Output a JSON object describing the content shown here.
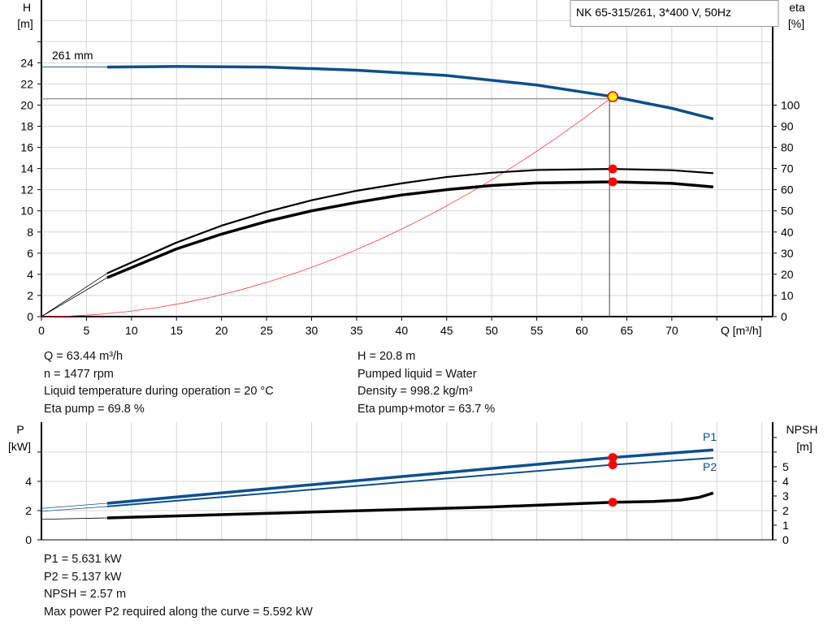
{
  "colors": {
    "head": "#0d4f8b",
    "eta": "#000000",
    "system": "#ff3b3b",
    "marker": "#ff0000",
    "op_fill": "#ffff00",
    "grid": "#d6d6d6"
  },
  "chart_data": [
    {
      "type": "line",
      "title": "NK 65-315/261, 3*400 V, 50Hz",
      "xlabel": "Q [m³/h]",
      "ylabel_left": [
        "H",
        "[m]"
      ],
      "ylabel_right": [
        "eta",
        "[%]"
      ],
      "xlim": [
        0,
        81.2
      ],
      "ylim_left": [
        0,
        29.9
      ],
      "ylim_right": [
        0,
        149.5
      ],
      "grid": true,
      "x_ticks": [
        0,
        5,
        10,
        15,
        20,
        25,
        30,
        35,
        40,
        45,
        50,
        55,
        60,
        65,
        70
      ],
      "y_ticks_left": [
        0,
        2,
        4,
        6,
        8,
        10,
        12,
        14,
        16,
        18,
        20,
        22,
        24
      ],
      "y_ticks_right": [
        0,
        10,
        20,
        30,
        40,
        50,
        60,
        70,
        80,
        90,
        100
      ],
      "curve_label": "261 mm",
      "operating_point": {
        "Q": 63.44,
        "H": 20.8
      },
      "series": [
        {
          "axis": "left",
          "color": "#0d4f8b",
          "width": 3.5,
          "x": [
            7.3,
            15,
            25,
            35,
            45,
            55,
            63.44,
            70,
            74.6
          ],
          "y": [
            23.6,
            23.65,
            23.6,
            23.3,
            22.8,
            21.9,
            20.8,
            19.7,
            18.7
          ],
          "ext": [
            [
              0,
              23.6
            ],
            [
              7.3,
              23.6
            ]
          ]
        },
        {
          "axis": "right",
          "color": "#000000",
          "width": 2.2,
          "x": [
            7.3,
            15,
            20,
            25,
            30,
            35,
            40,
            45,
            50,
            55,
            63.44,
            70,
            74.6
          ],
          "y": [
            20.5,
            35,
            43,
            49.5,
            55,
            59.5,
            63,
            66,
            68,
            69.3,
            69.8,
            69.2,
            67.8
          ],
          "ext": [
            [
              0,
              0
            ],
            [
              7.3,
              20.5
            ]
          ]
        },
        {
          "axis": "right",
          "color": "#000000",
          "width": 3.5,
          "x": [
            7.3,
            15,
            20,
            25,
            30,
            35,
            40,
            45,
            50,
            55,
            63.44,
            70,
            74.6
          ],
          "y": [
            18.4,
            32,
            39,
            45,
            50,
            54,
            57.5,
            60,
            62,
            63.2,
            63.7,
            63,
            61.3
          ],
          "ext": [
            [
              0,
              0
            ],
            [
              7.3,
              18.4
            ]
          ]
        }
      ],
      "markers": [
        {
          "axis": "right",
          "x": 63.44,
          "y": 69.8
        },
        {
          "axis": "right",
          "x": 63.44,
          "y": 63.7
        }
      ]
    },
    {
      "type": "line",
      "xlim": [
        0,
        81.2
      ],
      "ylim": [
        0,
        8.05
      ],
      "ylabel_left": [
        "P",
        "[kW]"
      ],
      "ylabel_right": [
        "NPSH",
        "[m]"
      ],
      "y_ticks_left": [
        0,
        2,
        4
      ],
      "y_ticks_right": [
        0,
        1,
        2,
        3,
        4,
        5
      ],
      "grid": true,
      "series": [
        {
          "name": "P1",
          "color": "#0d4f8b",
          "width": 3.5,
          "x": [
            7.3,
            63.44,
            74.6
          ],
          "y": [
            2.5,
            5.631,
            6.15
          ],
          "ext": [
            [
              0,
              2.15
            ],
            [
              7.3,
              2.5
            ]
          ]
        },
        {
          "name": "P2",
          "color": "#0d4f8b",
          "width": 2,
          "x": [
            7.3,
            63.44,
            74.6
          ],
          "y": [
            2.28,
            5.137,
            5.6
          ],
          "ext": [
            [
              0,
              1.95
            ],
            [
              7.3,
              2.28
            ]
          ]
        },
        {
          "color": "#000000",
          "width": 3.5,
          "x": [
            7.3,
            30,
            50,
            63.44,
            68,
            71,
            73,
            74.6
          ],
          "y": [
            1.5,
            1.9,
            2.25,
            2.57,
            2.62,
            2.72,
            2.9,
            3.2
          ],
          "ext": [
            [
              0,
              1.4
            ],
            [
              7.3,
              1.5
            ]
          ]
        }
      ],
      "markers": [
        {
          "x": 63.44,
          "y": 5.631
        },
        {
          "x": 63.44,
          "y": 5.137
        },
        {
          "x": 63.44,
          "y": 2.57
        }
      ]
    }
  ],
  "info_top": {
    "left": [
      "Q = 63.44 m³/h",
      "n = 1477 rpm",
      "Liquid temperature during operation = 20 °C",
      "Eta pump = 69.8 %"
    ],
    "right": [
      "H = 20.8 m",
      "Pumped liquid = Water",
      "Density = 998.2 kg/m³",
      "Eta pump+motor = 63.7 %"
    ]
  },
  "info_bottom": [
    "P1 = 5.631 kW",
    "P2 = 5.137 kW",
    "NPSH = 2.57 m",
    "Max power P2 required along the curve = 5.592 kW"
  ]
}
